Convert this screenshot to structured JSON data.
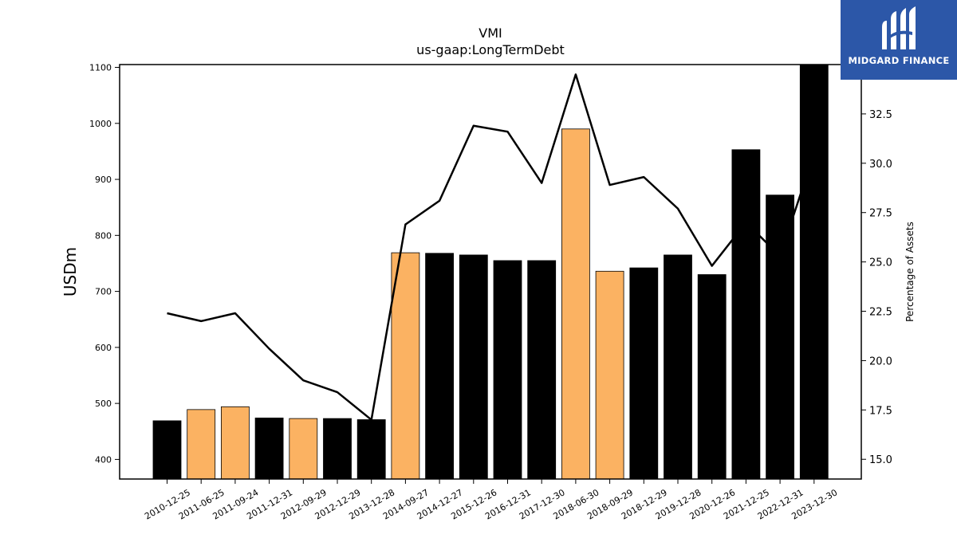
{
  "chart_data": {
    "type": "bar",
    "title": "VMI",
    "subtitle": "us-gaap:LongTermDebt",
    "ylabel": "USDm",
    "y2label": "Percentage of Assets",
    "ylim": [
      365,
      1105
    ],
    "y2lim": [
      14.0,
      35.0
    ],
    "yticks": [
      400,
      500,
      600,
      700,
      800,
      900,
      1000,
      1100
    ],
    "y2ticks": [
      15.0,
      17.5,
      20.0,
      22.5,
      25.0,
      27.5,
      30.0,
      32.5
    ],
    "categories": [
      "2010-12-25",
      "2011-06-25",
      "2011-09-24",
      "2011-12-31",
      "2012-09-29",
      "2012-12-29",
      "2013-12-28",
      "2014-09-27",
      "2014-12-27",
      "2015-12-26",
      "2016-12-31",
      "2017-12-30",
      "2018-06-30",
      "2018-09-29",
      "2018-12-29",
      "2019-12-28",
      "2020-12-26",
      "2021-12-25",
      "2022-12-31",
      "2023-12-30"
    ],
    "series": [
      {
        "type": "bar",
        "axis": "left",
        "values": [
          469,
          489,
          494,
          474,
          473,
          473,
          471,
          769,
          768,
          765,
          755,
          755,
          990,
          736,
          742,
          765,
          730,
          953,
          872,
          1110
        ],
        "colors": [
          "#000000",
          "#fbb262",
          "#fbb262",
          "#000000",
          "#fbb262",
          "#000000",
          "#000000",
          "#fbb262",
          "#000000",
          "#000000",
          "#000000",
          "#000000",
          "#fbb262",
          "#fbb262",
          "#000000",
          "#000000",
          "#000000",
          "#000000",
          "#000000",
          "#000000"
        ]
      },
      {
        "type": "line",
        "axis": "right",
        "color": "#000000",
        "values": [
          22.4,
          22.0,
          22.4,
          20.6,
          19.0,
          18.4,
          17.0,
          26.9,
          28.1,
          31.9,
          31.6,
          29.0,
          34.5,
          28.9,
          29.3,
          27.7,
          24.8,
          27.0,
          25.3,
          30.5
        ]
      }
    ]
  },
  "logo": {
    "text": "MIDGARD FINANCE",
    "color": "#2c57a8"
  }
}
